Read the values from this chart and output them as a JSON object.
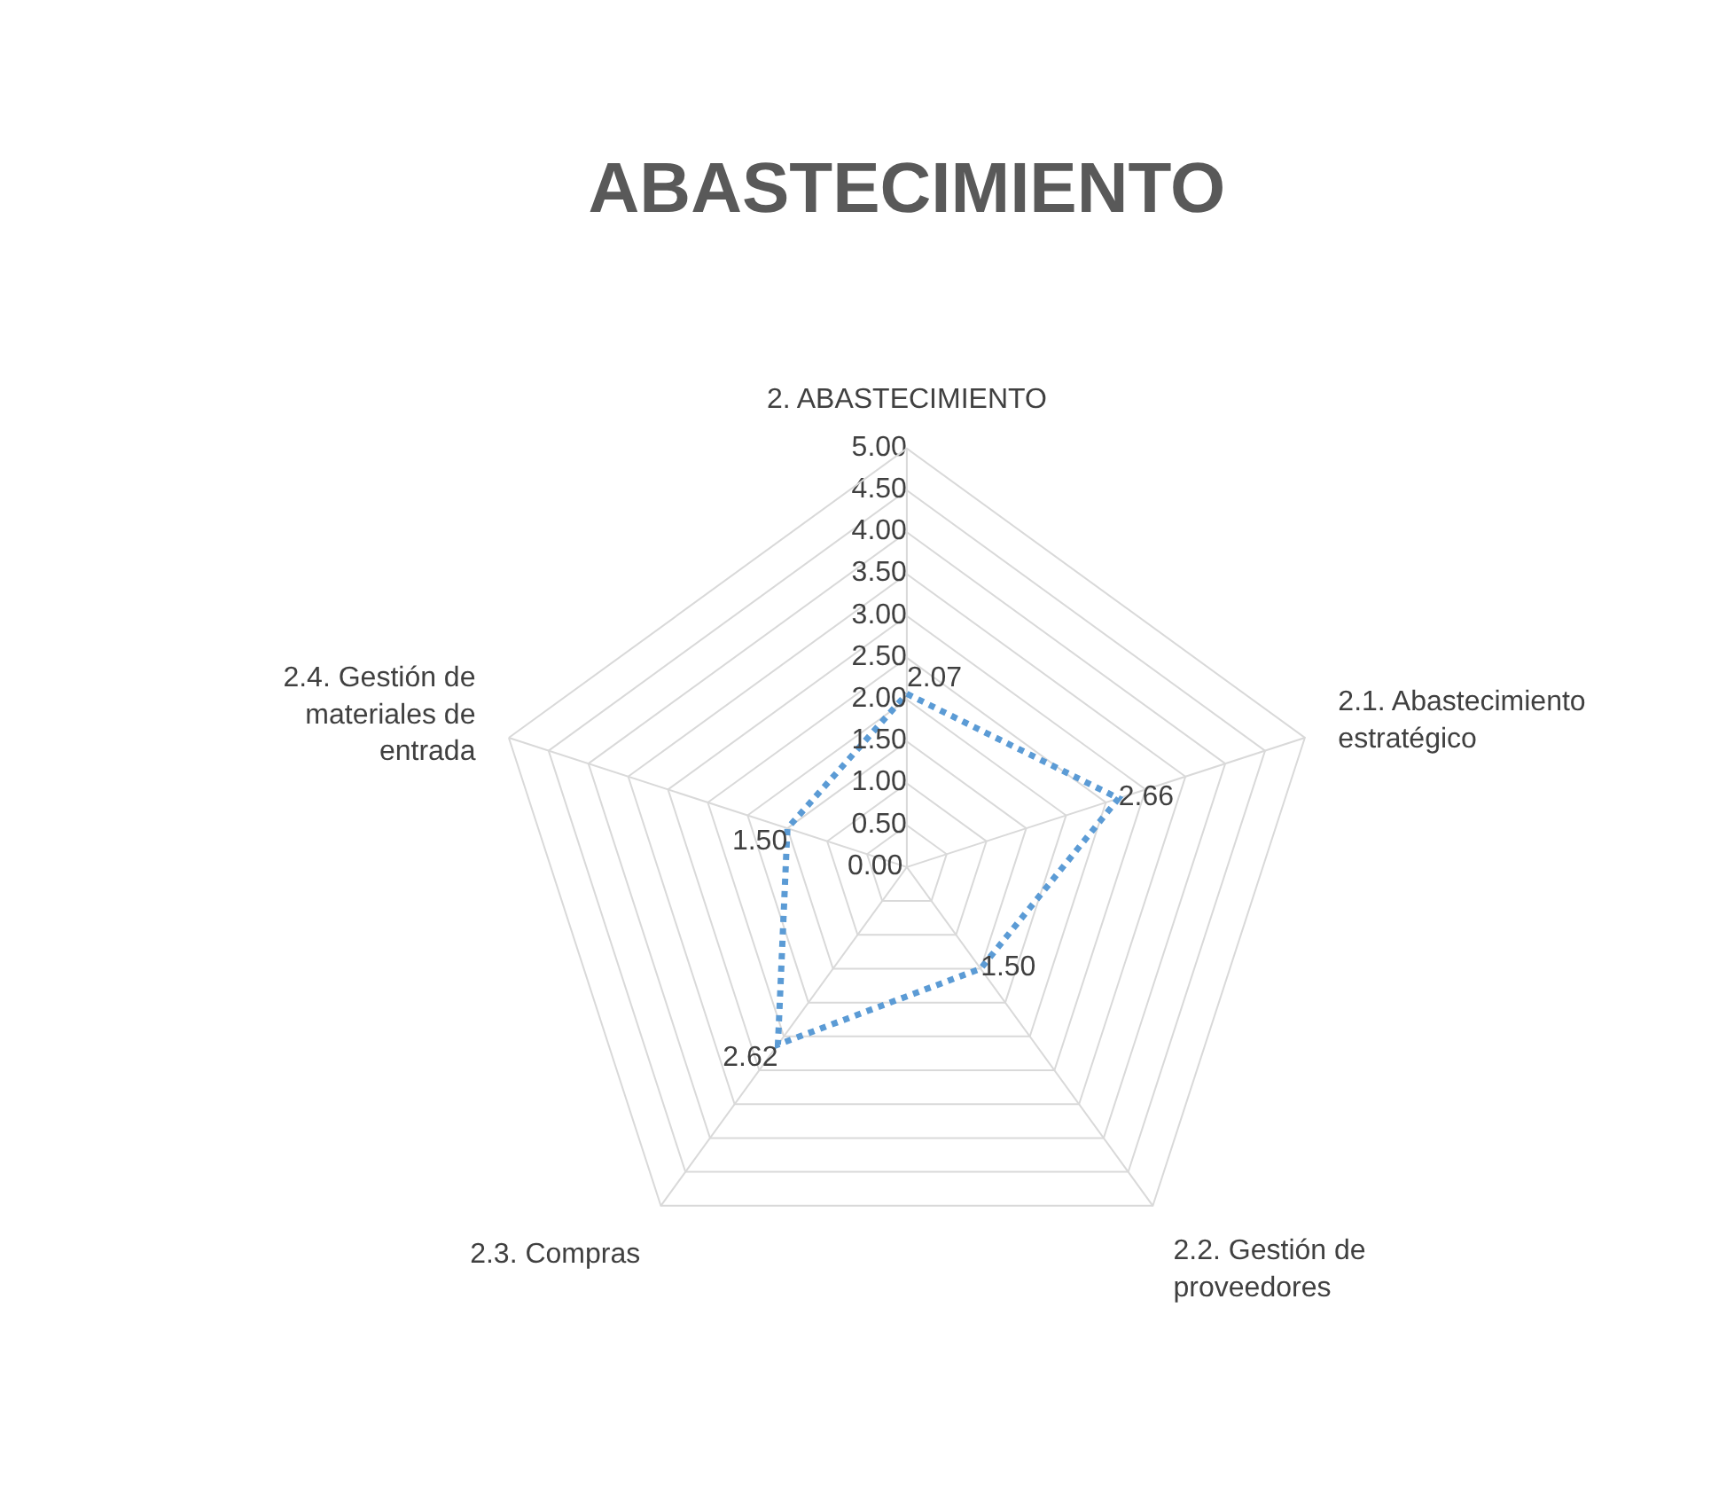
{
  "chart_data": {
    "type": "radar",
    "title": "ABASTECIMIENTO",
    "categories": [
      "2. ABASTECIMIENTO",
      "2.1. Abastecimiento estratégico",
      "2.2. Gestión de proveedores",
      "2.3. Compras",
      "2.4. Gestión de materiales de entrada"
    ],
    "series": [
      {
        "color": "#5b9bd5",
        "values": [
          2.07,
          2.66,
          1.5,
          2.62,
          1.5
        ],
        "value_labels": [
          "2.07",
          "2.66",
          "1.50",
          "2.62",
          "1.50"
        ]
      }
    ],
    "ylim": [
      0,
      5
    ],
    "yticks": [
      {
        "value": 0,
        "label": "0.00"
      },
      {
        "value": 0.5,
        "label": "0.50"
      },
      {
        "value": 1,
        "label": "1.00"
      },
      {
        "value": 1.5,
        "label": "1.50"
      },
      {
        "value": 2,
        "label": "2.00"
      },
      {
        "value": 2.5,
        "label": "2.50"
      },
      {
        "value": 3,
        "label": "3.00"
      },
      {
        "value": 3.5,
        "label": "3.50"
      },
      {
        "value": 4,
        "label": "4.00"
      },
      {
        "value": 4.5,
        "label": "4.50"
      },
      {
        "value": 5,
        "label": "5.00"
      }
    ],
    "grid": true,
    "marker": "none",
    "line_style": "dotted"
  }
}
